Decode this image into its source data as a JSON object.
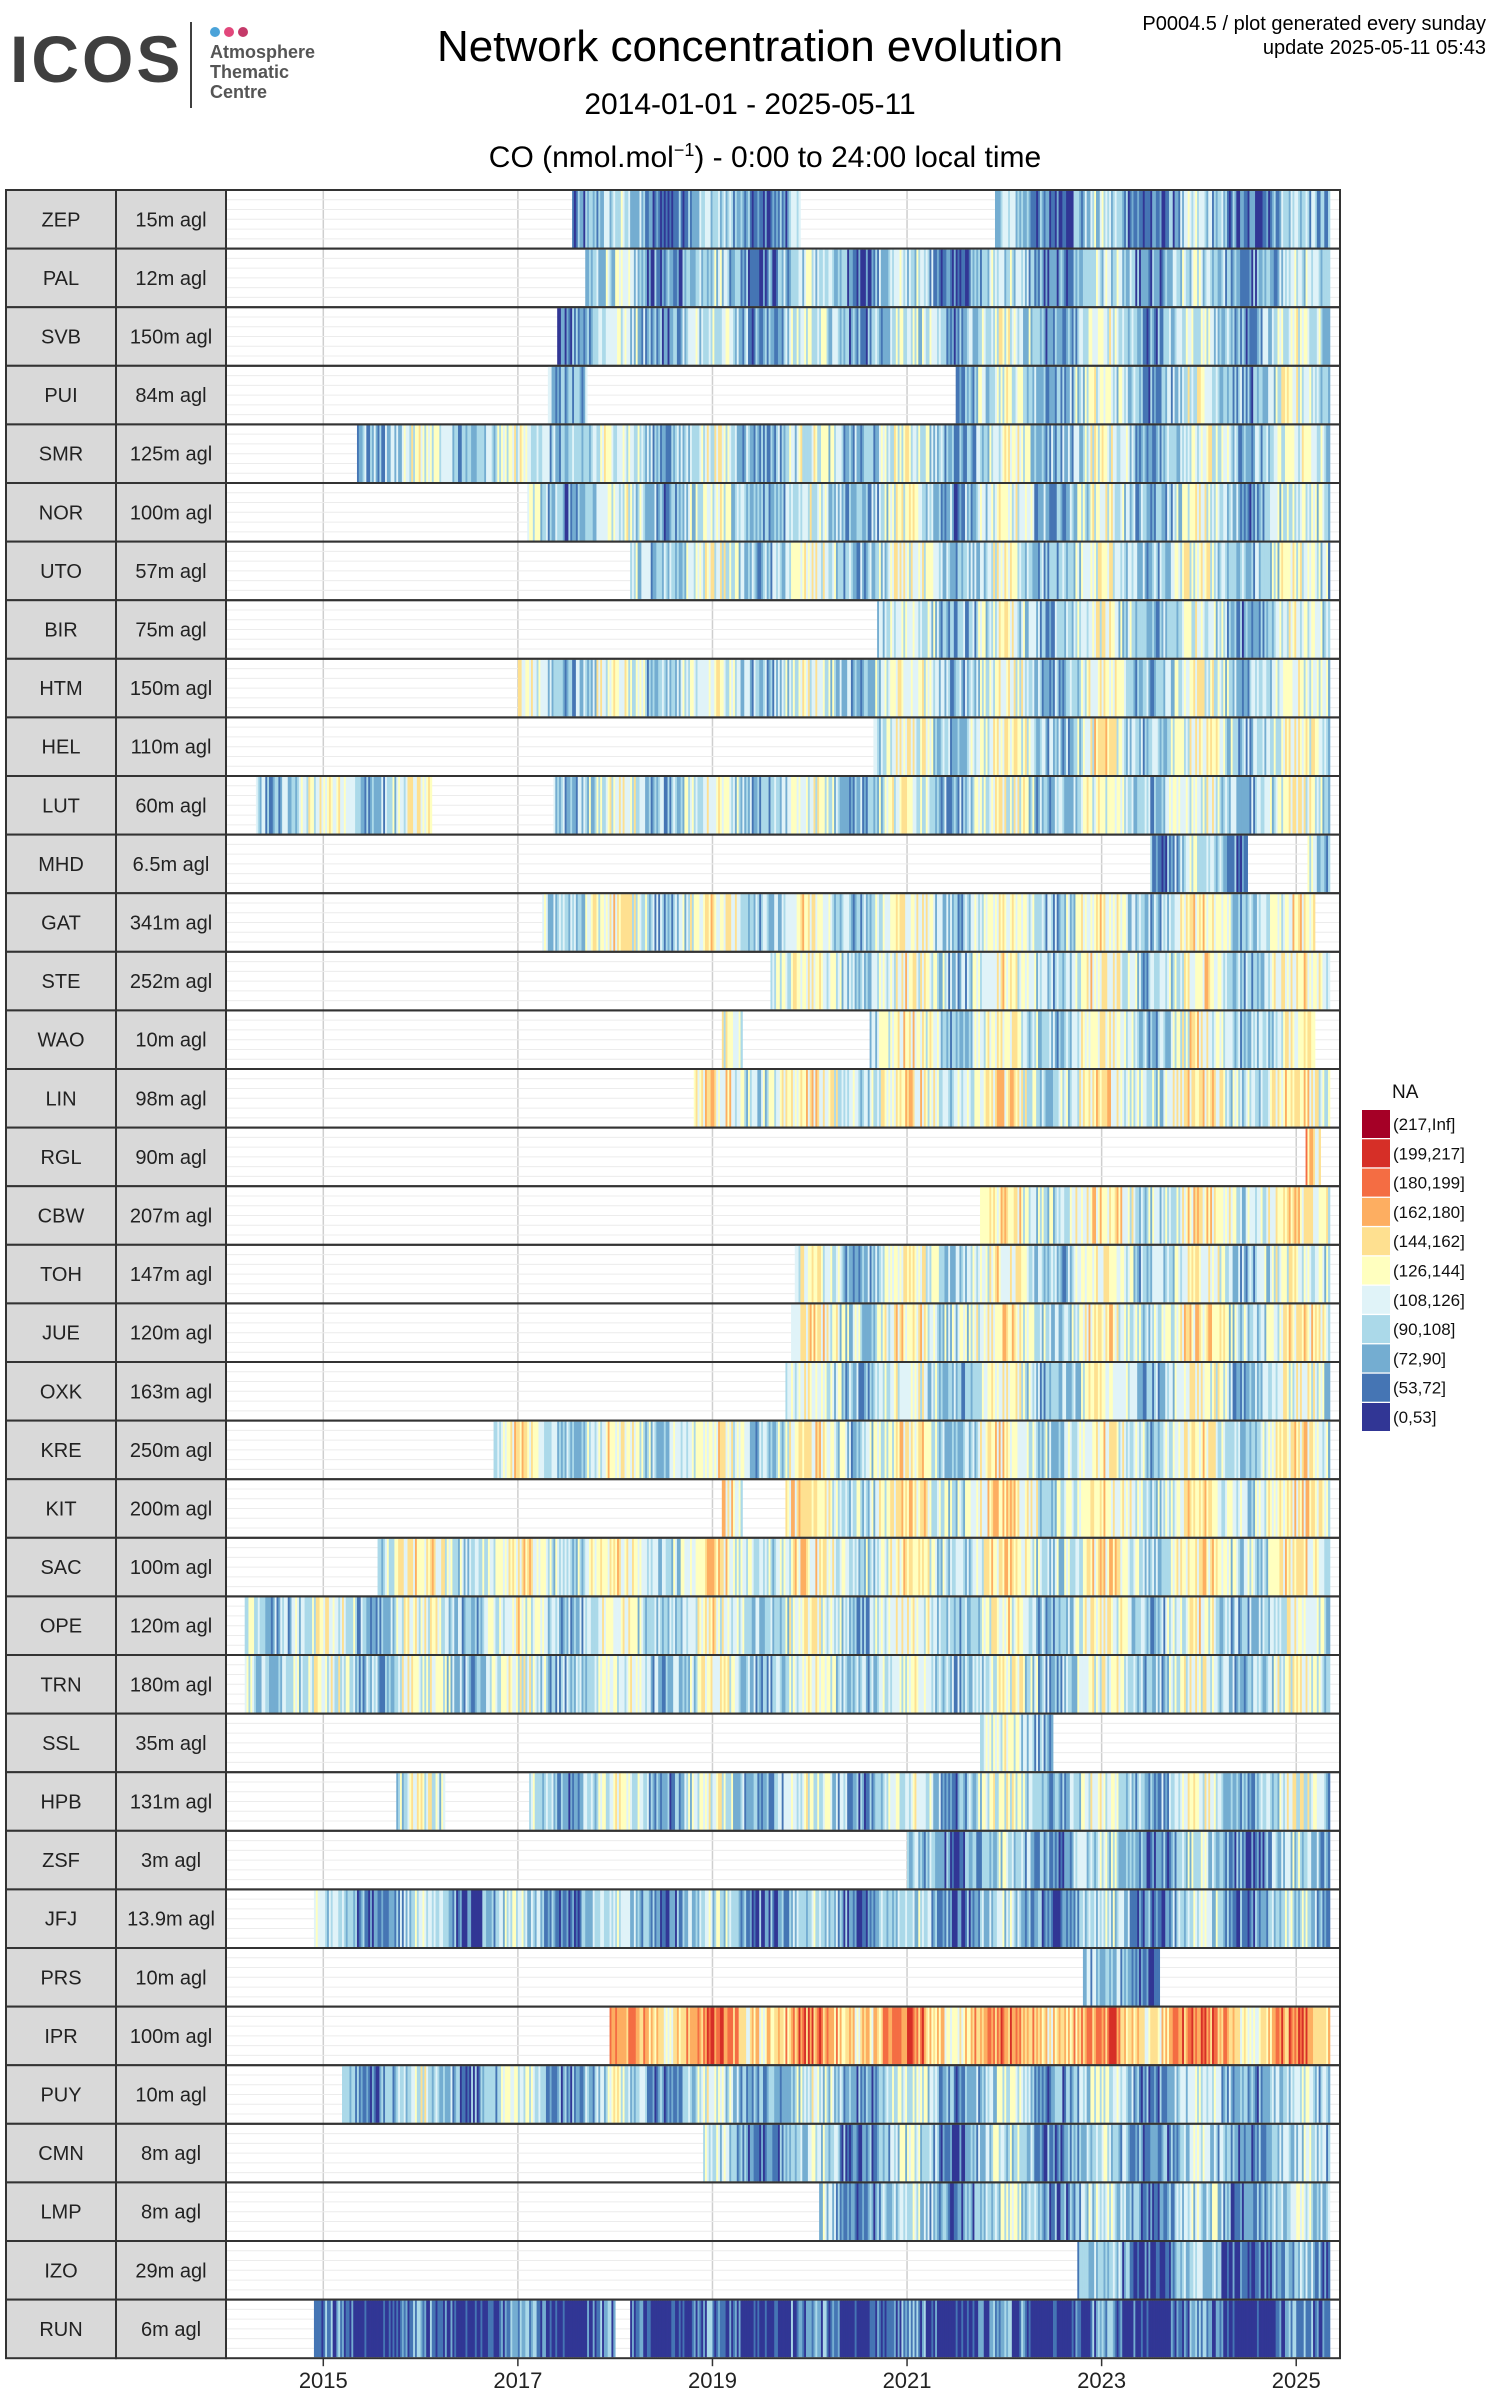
{
  "header": {
    "logo_word": "ICOS",
    "logo_line1": "Atmosphere",
    "logo_line2": "Thematic",
    "logo_line3": "Centre",
    "title": "Network concentration evolution",
    "date_range": "2014-01-01 - 2025-05-11",
    "variable_prefix": "CO (nmol.mol",
    "variable_sup": "−1",
    "variable_suffix": ") - 0:00 to 24:00 local time",
    "meta_line1": "P0004.5 / plot generated every sunday",
    "meta_line2": "update  2025-05-11 05:43",
    "colors": {
      "logo_dot1": "#4ba3d9",
      "logo_dot2": "#e2477b",
      "logo_dot3": "#c43a69"
    }
  },
  "chart_data": {
    "type": "heatmap",
    "title": "Network concentration evolution",
    "x_range": [
      "2014-01-01",
      "2025-05-11"
    ],
    "x_ticks": [
      "2015",
      "2017",
      "2019",
      "2021",
      "2023",
      "2025"
    ],
    "legend_title": "NA",
    "legend_position": "right",
    "bins": [
      {
        "label": "(217,Inf]",
        "color": "#a50026"
      },
      {
        "label": "(199,217]",
        "color": "#d62f27"
      },
      {
        "label": "(180,199]",
        "color": "#f46d43"
      },
      {
        "label": "(162,180]",
        "color": "#fdae61"
      },
      {
        "label": "(144,162]",
        "color": "#fee090"
      },
      {
        "label": "(126,144]",
        "color": "#ffffbf"
      },
      {
        "label": "(108,126]",
        "color": "#e0f3f8"
      },
      {
        "label": "(90,108]",
        "color": "#abd9e9"
      },
      {
        "label": "(72,90]",
        "color": "#74add1"
      },
      {
        "label": "(53,72]",
        "color": "#4575b4"
      },
      {
        "label": "(0,53]",
        "color": "#313695"
      }
    ],
    "stations": [
      {
        "code": "ZEP",
        "height": "15m agl",
        "start": 2017.55,
        "end": 2025.35,
        "gaps": [
          [
            2019.9,
            2021.9
          ]
        ],
        "level": 2.0
      },
      {
        "code": "PAL",
        "height": "12m agl",
        "start": 2017.7,
        "end": 2025.35,
        "gaps": [],
        "level": 2.4
      },
      {
        "code": "SVB",
        "height": "150m agl",
        "start": 2017.4,
        "end": 2025.35,
        "gaps": [],
        "level": 3.0
      },
      {
        "code": "PUI",
        "height": "84m agl",
        "start": 2017.3,
        "end": 2025.35,
        "gaps": [
          [
            2017.7,
            2021.5
          ]
        ],
        "level": 3.2
      },
      {
        "code": "SMR",
        "height": "125m agl",
        "start": 2015.35,
        "end": 2025.35,
        "gaps": [],
        "level": 3.3
      },
      {
        "code": "NOR",
        "height": "100m agl",
        "start": 2017.1,
        "end": 2025.35,
        "gaps": [],
        "level": 3.2
      },
      {
        "code": "UTO",
        "height": "57m agl",
        "start": 2018.15,
        "end": 2025.35,
        "gaps": [],
        "level": 3.4
      },
      {
        "code": "BIR",
        "height": "75m agl",
        "start": 2020.7,
        "end": 2025.35,
        "gaps": [],
        "level": 3.3
      },
      {
        "code": "HTM",
        "height": "150m agl",
        "start": 2017.0,
        "end": 2025.35,
        "gaps": [],
        "level": 3.6
      },
      {
        "code": "HEL",
        "height": "110m agl",
        "start": 2020.65,
        "end": 2025.35,
        "gaps": [],
        "level": 3.8
      },
      {
        "code": "LUT",
        "height": "60m agl",
        "start": 2014.3,
        "end": 2025.35,
        "gaps": [
          [
            2016.1,
            2017.35
          ]
        ],
        "level": 3.6
      },
      {
        "code": "MHD",
        "height": "6.5m agl",
        "start": 2023.5,
        "end": 2025.35,
        "gaps": [
          [
            2024.5,
            2025.1
          ]
        ],
        "level": 2.6
      },
      {
        "code": "GAT",
        "height": "341m agl",
        "start": 2017.25,
        "end": 2025.2,
        "gaps": [],
        "level": 4.0
      },
      {
        "code": "STE",
        "height": "252m agl",
        "start": 2019.6,
        "end": 2025.35,
        "gaps": [],
        "level": 4.0
      },
      {
        "code": "WAO",
        "height": "10m agl",
        "start": 2019.1,
        "end": 2025.2,
        "gaps": [
          [
            2019.3,
            2020.6
          ]
        ],
        "level": 3.9
      },
      {
        "code": "LIN",
        "height": "98m agl",
        "start": 2018.8,
        "end": 2025.35,
        "gaps": [],
        "level": 4.5
      },
      {
        "code": "RGL",
        "height": "90m agl",
        "start": 2025.1,
        "end": 2025.25,
        "gaps": [],
        "level": 5.0
      },
      {
        "code": "CBW",
        "height": "207m agl",
        "start": 2021.75,
        "end": 2025.35,
        "gaps": [],
        "level": 4.6
      },
      {
        "code": "TOH",
        "height": "147m agl",
        "start": 2019.85,
        "end": 2025.35,
        "gaps": [],
        "level": 3.8
      },
      {
        "code": "JUE",
        "height": "120m agl",
        "start": 2019.8,
        "end": 2025.35,
        "gaps": [],
        "level": 4.4
      },
      {
        "code": "OXK",
        "height": "163m agl",
        "start": 2019.75,
        "end": 2025.35,
        "gaps": [],
        "level": 3.6
      },
      {
        "code": "KRE",
        "height": "250m agl",
        "start": 2016.75,
        "end": 2025.35,
        "gaps": [],
        "level": 4.2
      },
      {
        "code": "KIT",
        "height": "200m agl",
        "start": 2019.1,
        "end": 2025.35,
        "gaps": [
          [
            2019.3,
            2019.75
          ]
        ],
        "level": 4.6
      },
      {
        "code": "SAC",
        "height": "100m agl",
        "start": 2015.55,
        "end": 2025.35,
        "gaps": [],
        "level": 4.3
      },
      {
        "code": "OPE",
        "height": "120m agl",
        "start": 2014.2,
        "end": 2025.35,
        "gaps": [],
        "level": 3.7
      },
      {
        "code": "TRN",
        "height": "180m agl",
        "start": 2014.2,
        "end": 2025.35,
        "gaps": [],
        "level": 3.6
      },
      {
        "code": "SSL",
        "height": "35m agl",
        "start": 2021.75,
        "end": 2022.5,
        "gaps": [],
        "level": 3.2
      },
      {
        "code": "HPB",
        "height": "131m agl",
        "start": 2015.75,
        "end": 2025.35,
        "gaps": [
          [
            2016.25,
            2017.1
          ]
        ],
        "level": 3.2
      },
      {
        "code": "ZSF",
        "height": "3m agl",
        "start": 2021.0,
        "end": 2025.35,
        "gaps": [],
        "level": 2.4
      },
      {
        "code": "JFJ",
        "height": "13.9m agl",
        "start": 2014.9,
        "end": 2025.35,
        "gaps": [],
        "level": 2.4
      },
      {
        "code": "PRS",
        "height": "10m agl",
        "start": 2022.8,
        "end": 2023.6,
        "gaps": [],
        "level": 1.9
      },
      {
        "code": "IPR",
        "height": "100m agl",
        "start": 2017.95,
        "end": 2025.35,
        "gaps": [],
        "level": 6.6
      },
      {
        "code": "PUY",
        "height": "10m agl",
        "start": 2015.2,
        "end": 2025.35,
        "gaps": [],
        "level": 2.8
      },
      {
        "code": "CMN",
        "height": "8m agl",
        "start": 2018.9,
        "end": 2025.35,
        "gaps": [],
        "level": 2.5
      },
      {
        "code": "LMP",
        "height": "8m agl",
        "start": 2020.1,
        "end": 2025.35,
        "gaps": [],
        "level": 2.6
      },
      {
        "code": "IZO",
        "height": "29m agl",
        "start": 2022.75,
        "end": 2025.35,
        "gaps": [],
        "level": 1.5
      },
      {
        "code": "RUN",
        "height": "6m agl",
        "start": 2014.9,
        "end": 2025.35,
        "gaps": [
          [
            2018.0,
            2018.15
          ]
        ],
        "level": 0.6
      }
    ]
  }
}
